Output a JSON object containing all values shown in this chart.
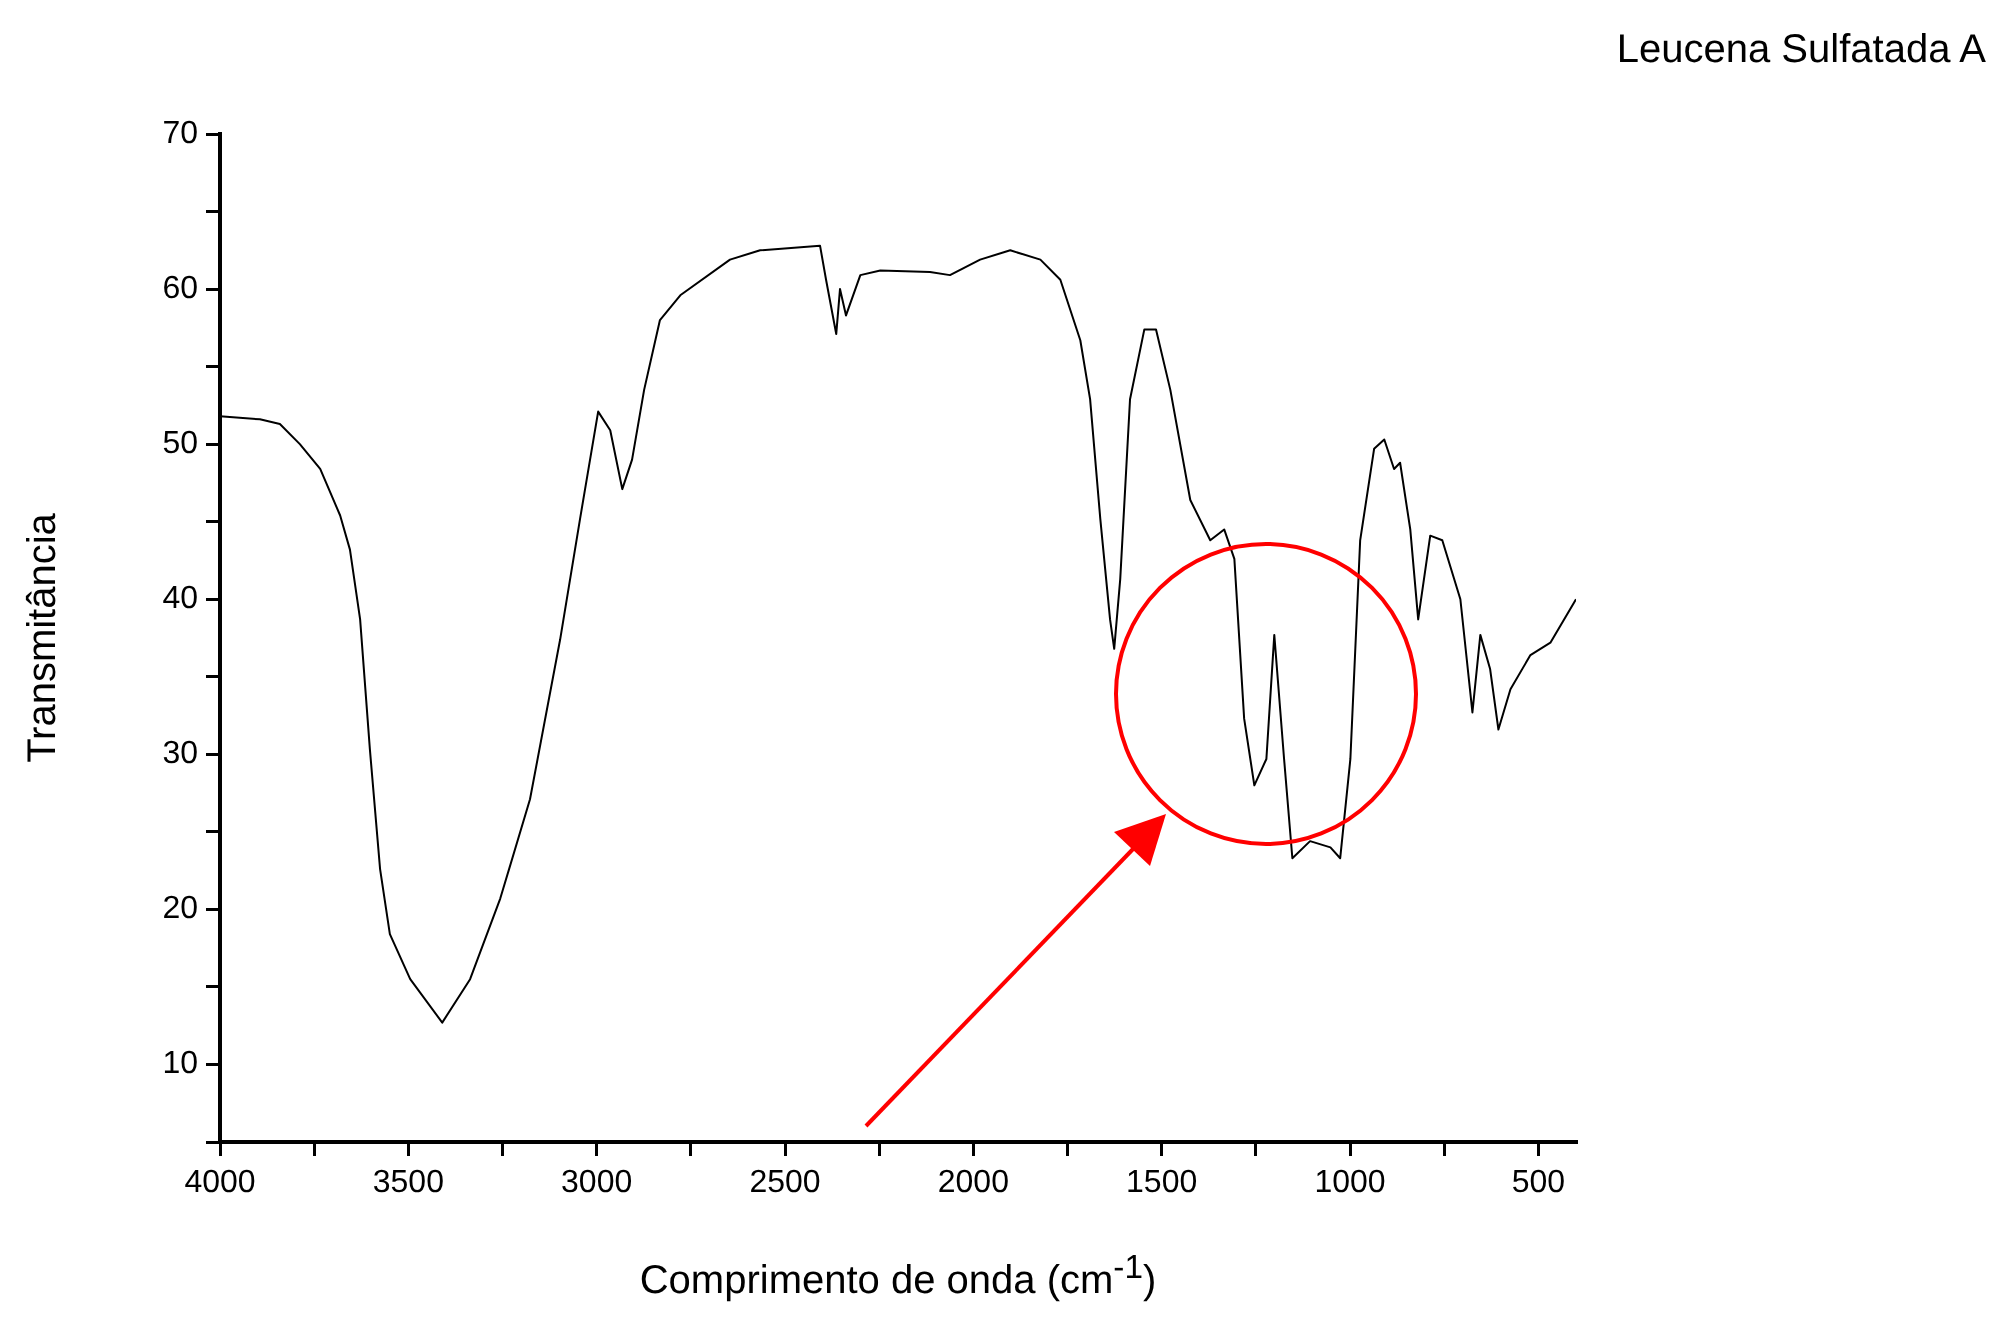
{
  "chart_data": {
    "type": "line",
    "title": "Leucena Sulfatada A",
    "xlabel": "Comprimento de onda (cm$^{-1}$)",
    "ylabel": "Transmitância",
    "x": [
      4000,
      3894,
      3841,
      3788,
      3734,
      3681,
      3655,
      3628,
      3602,
      3575,
      3549,
      3495,
      3410,
      3336,
      3256,
      3177,
      3097,
      3044,
      2996,
      2964,
      2932,
      2906,
      2874,
      2832,
      2778,
      2646,
      2566,
      2407,
      2391,
      2364,
      2354,
      2338,
      2300,
      2247,
      2115,
      2062,
      1982,
      1902,
      1822,
      1769,
      1716,
      1690,
      1663,
      1637,
      1626,
      1610,
      1584,
      1546,
      1515,
      1477,
      1424,
      1371,
      1334,
      1307,
      1281,
      1254,
      1222,
      1201,
      1175,
      1153,
      1106,
      1052,
      1026,
      999,
      973,
      936,
      909,
      883,
      867,
      840,
      819,
      787,
      755,
      707,
      675,
      654,
      628,
      606,
      574,
      521,
      468,
      400
    ],
    "series": [
      {
        "color": "#000000",
        "values": [
          51.8,
          51.6,
          51.3,
          50.0,
          48.4,
          45.4,
          43.2,
          38.7,
          30.3,
          22.6,
          18.4,
          15.5,
          12.7,
          15.5,
          20.7,
          27.1,
          37.4,
          45.2,
          52.1,
          50.9,
          47.1,
          49.0,
          53.5,
          58.0,
          59.6,
          61.9,
          62.5,
          62.8,
          60.6,
          57.1,
          60.0,
          58.3,
          60.9,
          61.2,
          61.1,
          60.9,
          61.9,
          62.5,
          61.9,
          60.6,
          56.7,
          52.9,
          45.2,
          38.7,
          36.8,
          41.3,
          52.9,
          57.4,
          57.4,
          53.5,
          46.4,
          43.8,
          44.5,
          42.6,
          32.3,
          28.0,
          29.7,
          37.7,
          29.7,
          23.3,
          24.4,
          24.0,
          23.3,
          29.7,
          43.8,
          49.7,
          50.3,
          48.4,
          48.8,
          44.5,
          38.7,
          44.1,
          43.8,
          40.0,
          32.7,
          37.7,
          35.5,
          31.6,
          34.2,
          36.4,
          37.2,
          40.0
        ]
      }
    ],
    "xlim": [
      4000,
      400
    ],
    "xticks": [
      4000,
      {
        "value": 3750,
        "label": null
      },
      3500,
      {
        "value": 3250,
        "label": null
      },
      3000,
      {
        "value": 2750,
        "label": null
      },
      2500,
      {
        "value": 2250,
        "label": null
      },
      2000,
      {
        "value": 1750,
        "label": null
      },
      1500,
      {
        "value": 1250,
        "label": null
      },
      1000,
      {
        "value": 750,
        "label": null
      },
      500
    ],
    "ylim": [
      5,
      70
    ],
    "yticks": [
      {
        "value": 5,
        "label": null
      },
      10,
      {
        "value": 15,
        "label": null
      },
      20,
      {
        "value": 25,
        "label": null
      },
      30,
      {
        "value": 35,
        "label": null
      },
      40,
      {
        "value": 45,
        "label": null
      },
      50,
      {
        "value": 55,
        "label": null
      },
      60,
      {
        "value": 65,
        "label": null
      },
      70
    ],
    "grid": false,
    "legend": false,
    "marker": "none",
    "line_style": "solid"
  }
}
